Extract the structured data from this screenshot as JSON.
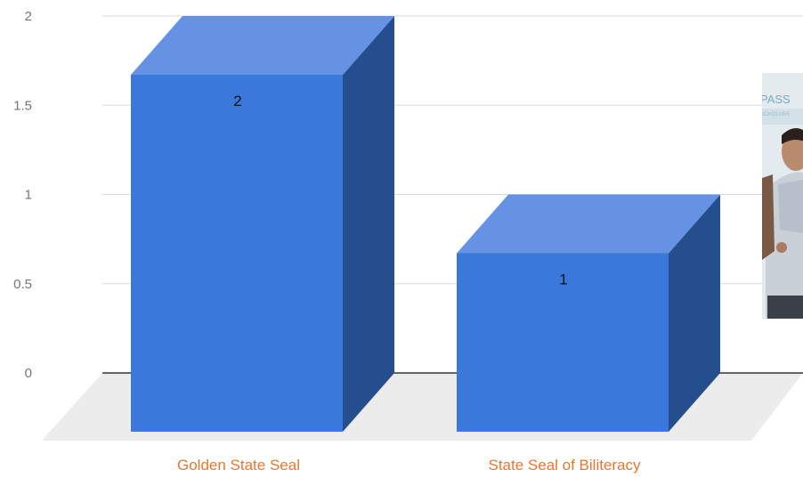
{
  "chart_data": {
    "type": "bar",
    "style": "3d",
    "categories": [
      "Golden State Seal",
      "State Seal of Biliteracy"
    ],
    "values": [
      2,
      1
    ],
    "data_labels": [
      "2",
      "1"
    ],
    "y_ticks": [
      "0",
      "0.5",
      "1",
      "1.5",
      "2"
    ],
    "ylim": [
      0,
      2
    ],
    "grid": true,
    "legend": "none",
    "title": "",
    "xlabel": "",
    "ylabel": ""
  },
  "colors": {
    "bar_front": "#3b78db",
    "bar_top": "#6592e2",
    "bar_side": "#244e8e",
    "category_text": "#e8772e",
    "gridline": "#d9d9d9",
    "baseline": "#333333",
    "floor": "#ececec"
  },
  "photo_icon": "person-photo-icon"
}
